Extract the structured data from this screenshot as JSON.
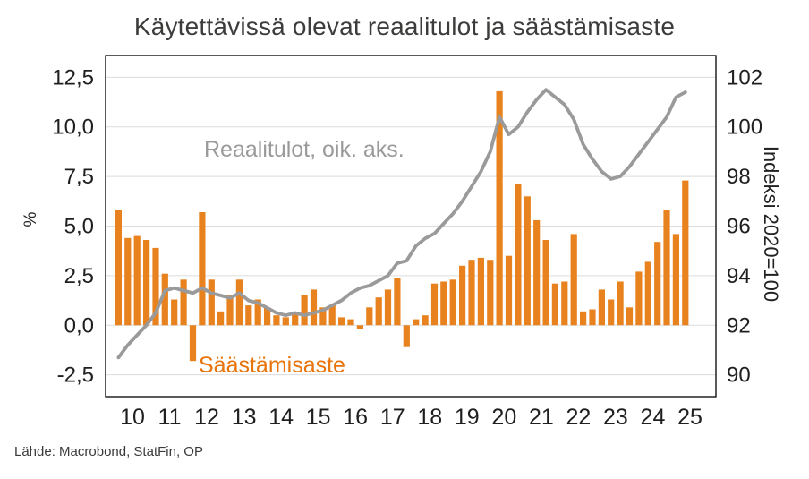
{
  "source": "Lähde: Macrobond, StatFin, OP",
  "annotations": {
    "line": {
      "text": "Reaalitulot, oik. aks.",
      "color": "#9A9A9A"
    },
    "bar": {
      "text": "Säästämisaste",
      "color": "#E8740B"
    }
  },
  "chart_data": {
    "type": "combo",
    "title": "Käytettävissä olevat reaalitulot ja säästämisaste",
    "frequency": "quarterly",
    "x_start": "2010-Q1",
    "x_tick_labels": [
      "10",
      "11",
      "12",
      "13",
      "14",
      "15",
      "16",
      "17",
      "18",
      "19",
      "20",
      "21",
      "22",
      "23",
      "24",
      "25"
    ],
    "left_axis": {
      "label": "%",
      "min": -3.6,
      "max": 13.6,
      "ticks": [
        -2.5,
        0,
        2.5,
        5,
        7.5,
        10,
        12.5
      ],
      "tick_labels": [
        "-2,5",
        "0,0",
        "2,5",
        "5,0",
        "7,5",
        "10,0",
        "12,5"
      ]
    },
    "right_axis": {
      "label": "Indeksi 2020=100",
      "min": 89.12,
      "max": 102.88,
      "ticks": [
        90,
        92,
        94,
        96,
        98,
        100,
        102
      ],
      "tick_labels": [
        "90",
        "92",
        "94",
        "96",
        "98",
        "100",
        "102"
      ]
    },
    "grid": true,
    "legend_position": "none",
    "series": [
      {
        "name": "Säästämisaste",
        "type": "bar",
        "axis": "left",
        "color": "#E8821E",
        "values": [
          5.8,
          4.4,
          4.5,
          4.3,
          3.9,
          2.6,
          1.3,
          2.3,
          -1.8,
          5.7,
          2.3,
          0.7,
          1.5,
          2.3,
          1.0,
          1.3,
          0.9,
          0.5,
          0.4,
          0.6,
          1.5,
          1.8,
          0.9,
          1.0,
          0.4,
          0.3,
          -0.2,
          0.9,
          1.4,
          1.8,
          2.4,
          -1.1,
          0.3,
          0.5,
          2.1,
          2.2,
          2.3,
          3.0,
          3.3,
          3.4,
          3.3,
          11.8,
          3.5,
          7.1,
          6.5,
          5.3,
          4.3,
          2.1,
          2.2,
          4.6,
          0.7,
          0.8,
          1.8,
          1.3,
          2.2,
          0.9,
          2.7,
          3.2,
          4.2,
          5.8,
          4.6,
          7.3
        ]
      },
      {
        "name": "Reaalitulot, oik. aks.",
        "type": "line",
        "axis": "right",
        "color": "#9A9A9A",
        "values": [
          90.7,
          91.2,
          91.6,
          92.0,
          92.5,
          93.4,
          93.5,
          93.4,
          93.3,
          93.5,
          93.3,
          93.2,
          93.1,
          93.3,
          93.0,
          92.9,
          92.7,
          92.5,
          92.4,
          92.5,
          92.4,
          92.5,
          92.6,
          92.8,
          93.0,
          93.3,
          93.5,
          93.6,
          93.8,
          94.0,
          94.5,
          94.6,
          95.2,
          95.5,
          95.7,
          96.1,
          96.5,
          97.0,
          97.6,
          98.2,
          99.0,
          100.4,
          99.7,
          100.0,
          100.6,
          101.1,
          101.5,
          101.2,
          100.9,
          100.3,
          99.3,
          98.7,
          98.2,
          97.9,
          98.0,
          98.4,
          98.9,
          99.4,
          99.9,
          100.4,
          101.2,
          101.4
        ]
      }
    ]
  }
}
